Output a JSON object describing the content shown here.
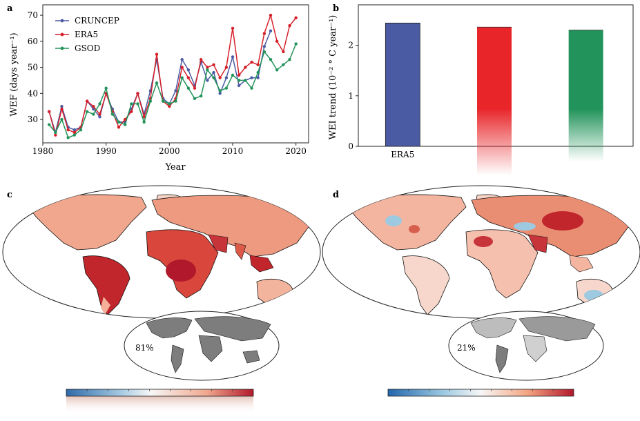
{
  "panels": {
    "a": {
      "letter": "a"
    },
    "b": {
      "letter": "b"
    },
    "c": {
      "letter": "c",
      "inset_percent": "81%"
    },
    "d": {
      "letter": "d",
      "inset_percent": "21%"
    }
  },
  "colors": {
    "cruncep": "#4a5ba3",
    "era5": "#d6202a",
    "gsod": "#22935a",
    "map_land_c": "#f3c4b3",
    "map_land_d": "#f7ddd3",
    "map_hot": "#c0262c",
    "map_cold": "#6fa3cf",
    "inset_gray": "#7d7d7d"
  },
  "chart_data": [
    {
      "id": "a",
      "type": "line",
      "xlabel": "Year",
      "ylabel": "WEF (days year⁻¹)",
      "xlim": [
        1980,
        2022
      ],
      "ylim": [
        21,
        74
      ],
      "xticks": [
        1980,
        1990,
        2000,
        2010,
        2020
      ],
      "yticks": [
        30,
        40,
        50,
        60,
        70
      ],
      "legend_position": "top-left",
      "series": [
        {
          "name": "CRUNCEP",
          "color": "#4a5ba3",
          "x": [
            1981,
            1982,
            1983,
            1984,
            1985,
            1986,
            1987,
            1988,
            1989,
            1990,
            1991,
            1992,
            1993,
            1994,
            1995,
            1996,
            1997,
            1998,
            1999,
            2000,
            2001,
            2002,
            2003,
            2004,
            2005,
            2006,
            2007,
            2008,
            2009,
            2010,
            2011,
            2012,
            2013,
            2014,
            2015,
            2016
          ],
          "y": [
            33,
            25,
            35,
            27,
            26,
            27,
            37,
            34,
            31,
            40,
            34,
            29,
            29,
            34,
            40,
            32,
            41,
            53,
            38,
            36,
            41,
            53,
            49,
            43,
            52,
            45,
            48,
            40,
            46,
            54,
            43,
            45,
            46,
            46,
            58,
            64
          ]
        },
        {
          "name": "ERA5",
          "color": "#d6202a",
          "x": [
            1981,
            1982,
            1983,
            1984,
            1985,
            1986,
            1987,
            1988,
            1989,
            1990,
            1991,
            1992,
            1993,
            1994,
            1995,
            1996,
            1997,
            1998,
            1999,
            2000,
            2001,
            2002,
            2003,
            2004,
            2005,
            2006,
            2007,
            2008,
            2009,
            2010,
            2011,
            2012,
            2013,
            2014,
            2015,
            2016,
            2017,
            2018,
            2019,
            2020
          ],
          "y": [
            33,
            24,
            34,
            26,
            25,
            27,
            37,
            35,
            32,
            40,
            33,
            27,
            30,
            33,
            40,
            31,
            38,
            55,
            37,
            35,
            38,
            50,
            46,
            42,
            53,
            50,
            51,
            46,
            50,
            65,
            47,
            50,
            52,
            51,
            63,
            70,
            60,
            56,
            66,
            69
          ]
        },
        {
          "name": "GSOD",
          "color": "#22935a",
          "x": [
            1981,
            1982,
            1983,
            1984,
            1985,
            1986,
            1987,
            1988,
            1989,
            1990,
            1991,
            1992,
            1993,
            1994,
            1995,
            1996,
            1997,
            1998,
            1999,
            2000,
            2001,
            2002,
            2003,
            2004,
            2005,
            2006,
            2007,
            2008,
            2009,
            2010,
            2011,
            2012,
            2013,
            2014,
            2015,
            2016,
            2017,
            2018,
            2019,
            2020
          ],
          "y": [
            28,
            25,
            30,
            23,
            24,
            26,
            33,
            32,
            36,
            42,
            32,
            29,
            28,
            36,
            36,
            29,
            37,
            44,
            37,
            36,
            37,
            46,
            42,
            38,
            39,
            49,
            46,
            41,
            42,
            47,
            45,
            45,
            42,
            48,
            56,
            53,
            49,
            51,
            53,
            59
          ]
        }
      ]
    },
    {
      "id": "b",
      "type": "bar",
      "xlabel": "",
      "ylabel": "WEI trend (10⁻² ° C year⁻¹)",
      "ylim": [
        0,
        2.8
      ],
      "yticks": [
        0,
        1,
        2
      ],
      "categories": [
        "ERA5",
        "",
        ""
      ],
      "values": [
        2.44,
        2.36,
        2.3
      ],
      "colors": [
        "#4a5ba3",
        "#e8262a",
        "#22935a"
      ]
    }
  ]
}
